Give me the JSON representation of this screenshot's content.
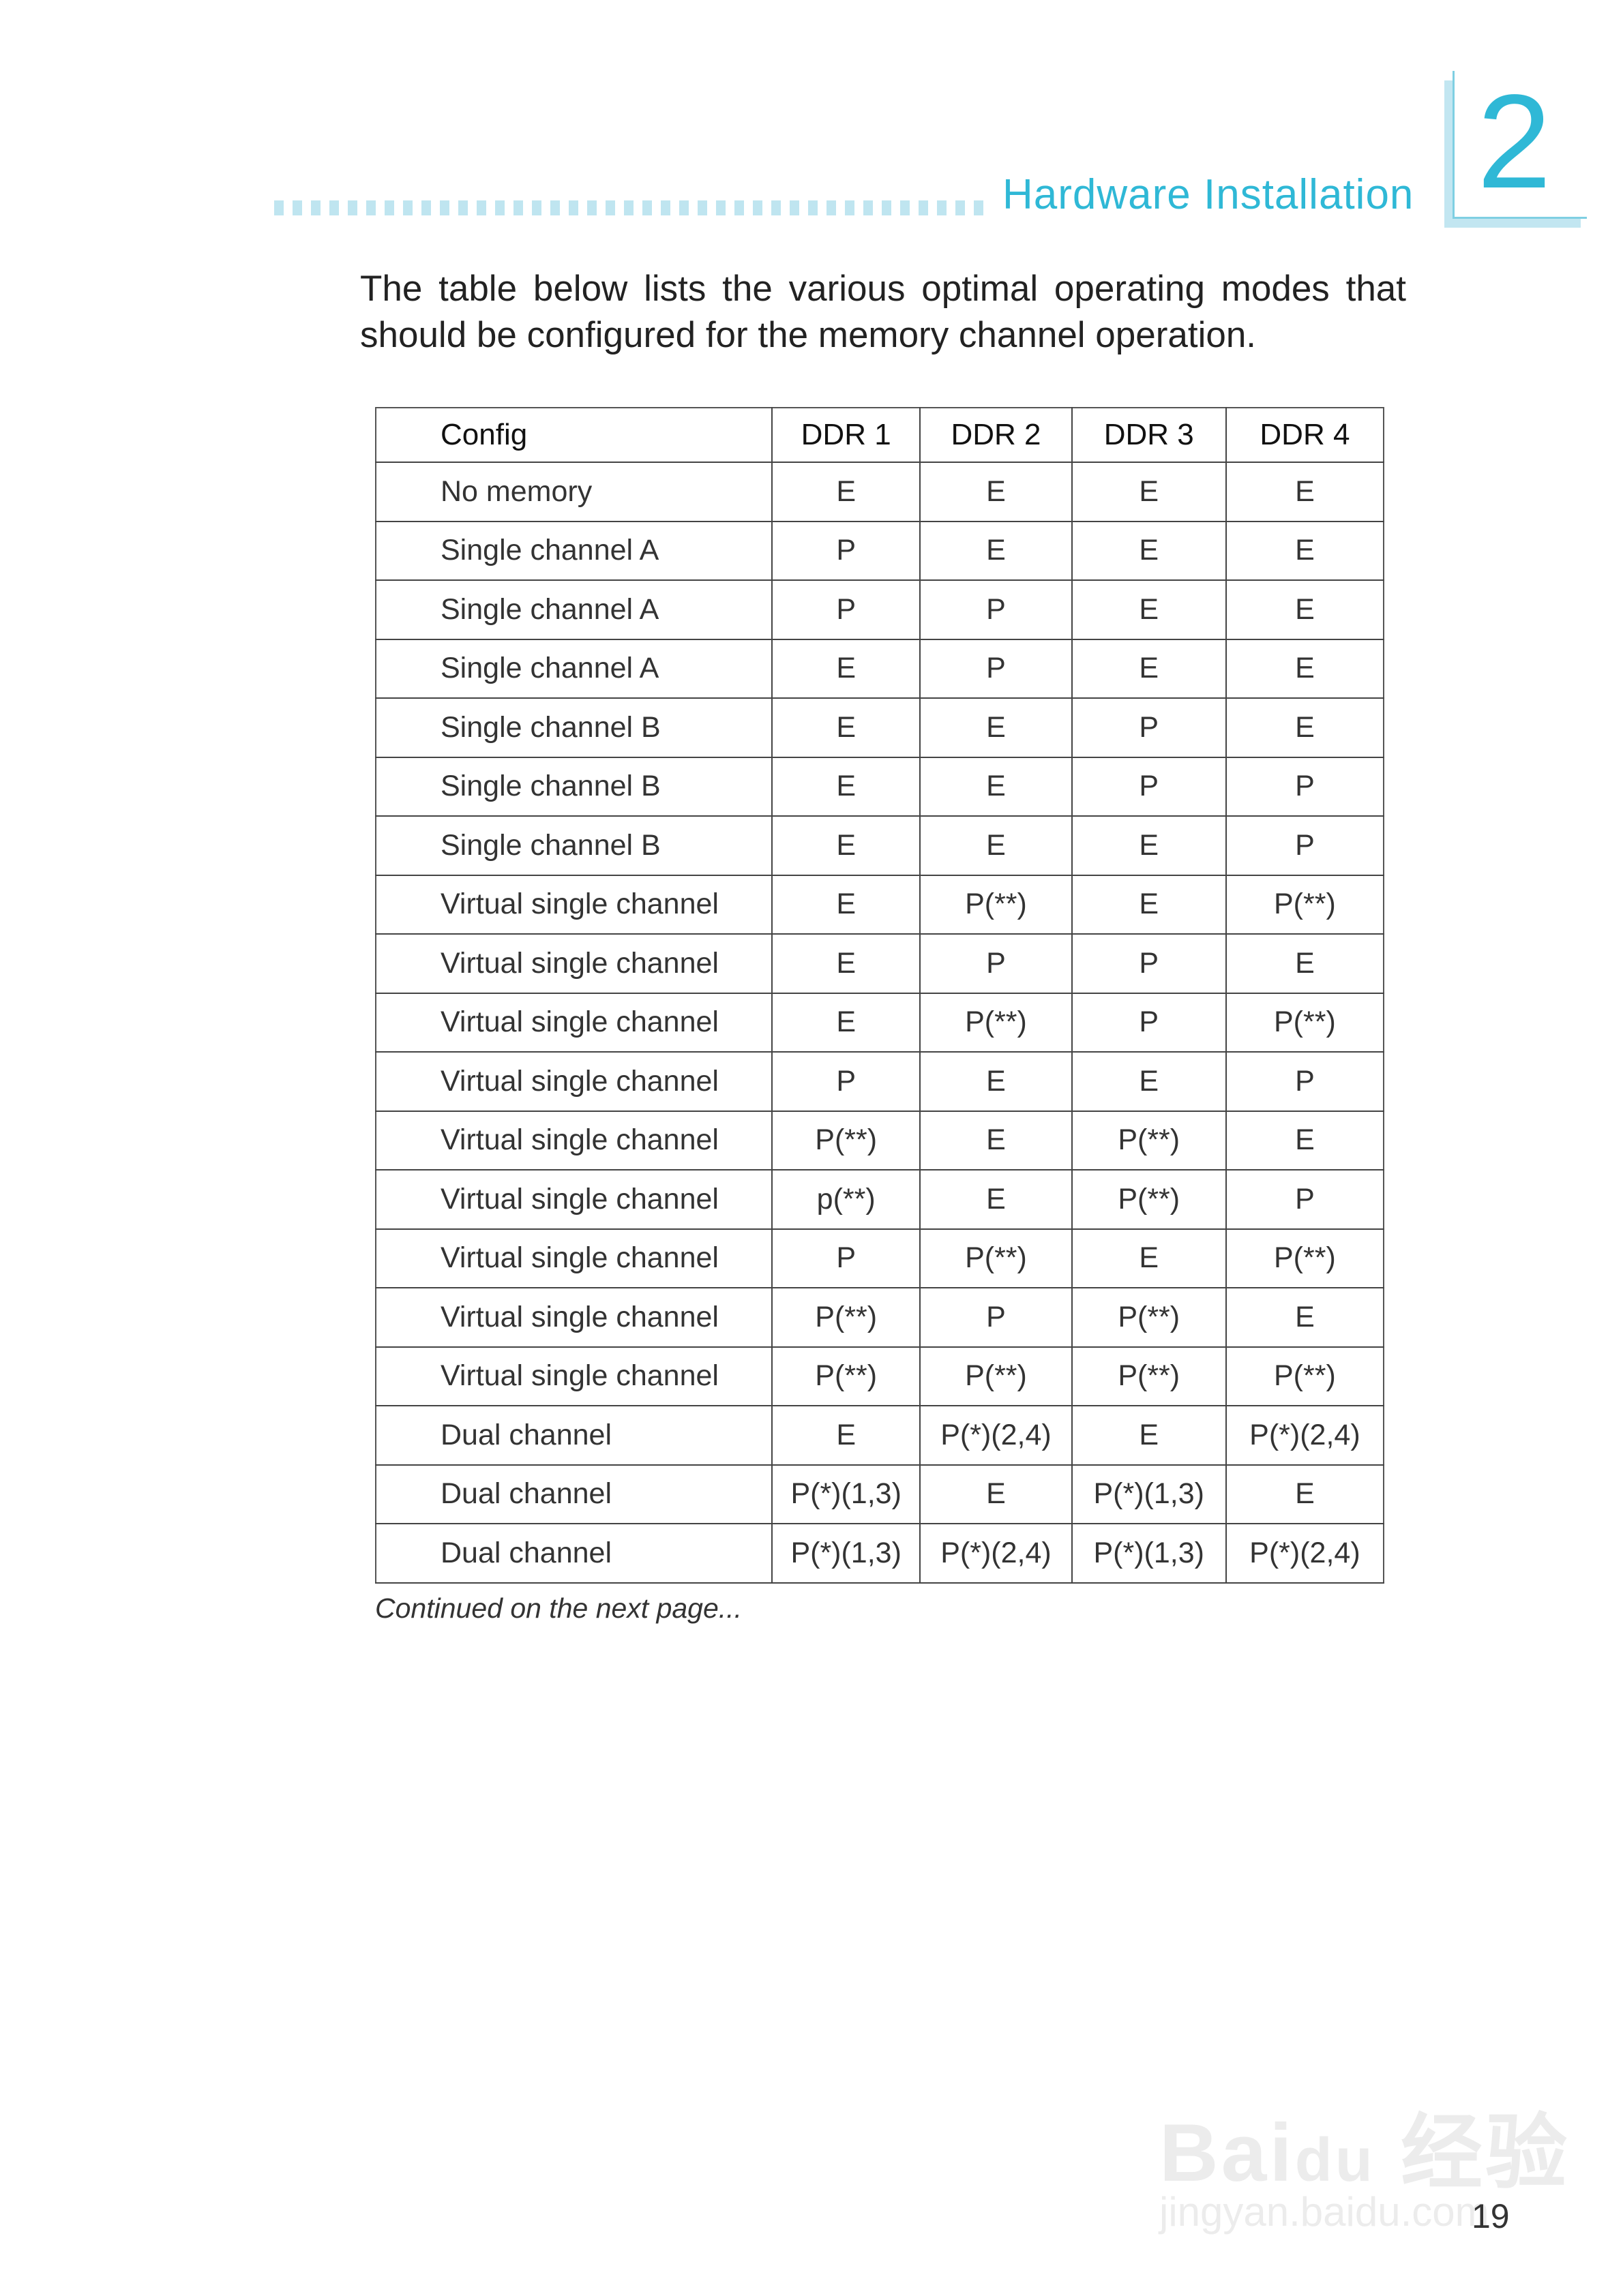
{
  "header": {
    "section_title": "Hardware Installation",
    "chapter_number": "2"
  },
  "intro": "The table below lists the various optimal operating modes that should be configured for the memory channel operation.",
  "table": {
    "headers": [
      "Config",
      "DDR 1",
      "DDR 2",
      "DDR 3",
      "DDR 4"
    ],
    "rows": [
      [
        "No memory",
        "E",
        "E",
        "E",
        "E"
      ],
      [
        "Single channel A",
        "P",
        "E",
        "E",
        "E"
      ],
      [
        "Single channel A",
        "P",
        "P",
        "E",
        "E"
      ],
      [
        "Single channel A",
        "E",
        "P",
        "E",
        "E"
      ],
      [
        "Single channel B",
        "E",
        "E",
        "P",
        "E"
      ],
      [
        "Single channel B",
        "E",
        "E",
        "P",
        "P"
      ],
      [
        "Single channel B",
        "E",
        "E",
        "E",
        "P"
      ],
      [
        "Virtual single channel",
        "E",
        "P(**)",
        "E",
        "P(**)"
      ],
      [
        "Virtual single channel",
        "E",
        "P",
        "P",
        "E"
      ],
      [
        "Virtual single channel",
        "E",
        "P(**)",
        "P",
        "P(**)"
      ],
      [
        "Virtual single channel",
        "P",
        "E",
        "E",
        "P"
      ],
      [
        "Virtual single channel",
        "P(**)",
        "E",
        "P(**)",
        "E"
      ],
      [
        "Virtual single channel",
        "p(**)",
        "E",
        "P(**)",
        "P"
      ],
      [
        "Virtual single channel",
        "P",
        "P(**)",
        "E",
        "P(**)"
      ],
      [
        "Virtual single channel",
        "P(**)",
        "P",
        "P(**)",
        "E"
      ],
      [
        "Virtual single channel",
        "P(**)",
        "P(**)",
        "P(**)",
        "P(**)"
      ],
      [
        "Dual channel",
        "E",
        "P(*)(2,4)",
        "E",
        "P(*)(2,4)"
      ],
      [
        "Dual channel",
        "P(*)(1,3)",
        "E",
        "P(*)(1,3)",
        "E"
      ],
      [
        "Dual channel",
        "P(*)(1,3)",
        "P(*)(2,4)",
        "P(*)(1,3)",
        "P(*)(2,4)"
      ]
    ]
  },
  "continued_note": "Continued on the next page...",
  "page_number": "19",
  "watermark": {
    "logo_text": "Baidu 经验",
    "url_text": "jingyan.baidu.com"
  },
  "colors": {
    "accent": "#2fb8d6",
    "accent_light": "#bfe5f0"
  }
}
